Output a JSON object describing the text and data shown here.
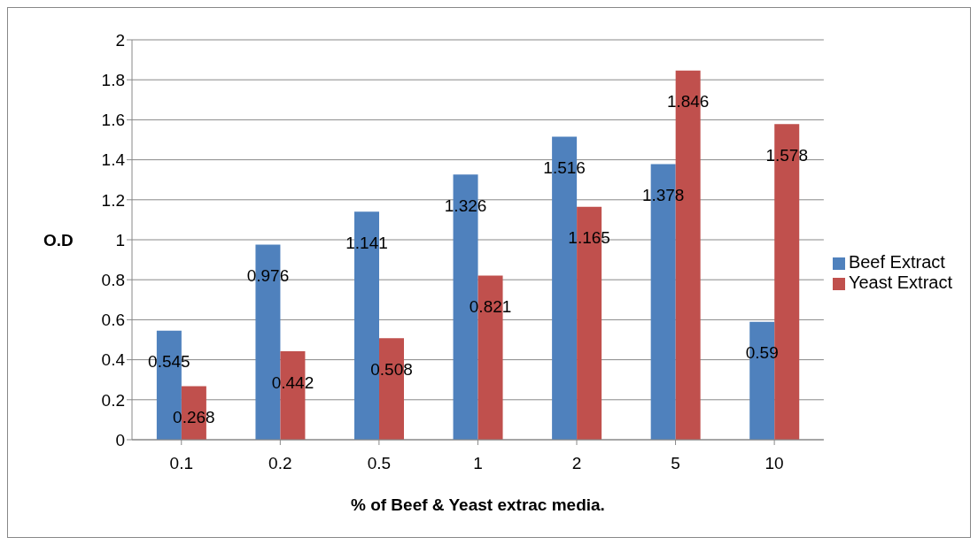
{
  "chart_data": {
    "type": "bar",
    "xlabel": "% of Beef & Yeast extrac media.",
    "ylabel": "O.D",
    "categories": [
      "0.1",
      "0.2",
      "0.5",
      "1",
      "2",
      "5",
      "10"
    ],
    "series": [
      {
        "name": "Beef Extract",
        "color": "#4f81bd",
        "values": [
          0.545,
          0.976,
          1.141,
          1.326,
          1.516,
          1.378,
          0.59
        ]
      },
      {
        "name": "Yeast Extract",
        "color": "#c0504d",
        "values": [
          0.268,
          0.442,
          0.508,
          0.821,
          1.165,
          1.846,
          1.578
        ]
      }
    ],
    "ylim": [
      0,
      2
    ],
    "yticks": [
      0,
      0.2,
      0.4,
      0.6,
      0.8,
      1,
      1.2,
      1.4,
      1.6,
      1.8,
      2
    ],
    "grid": "y",
    "legend": "right",
    "data_labels": true
  }
}
